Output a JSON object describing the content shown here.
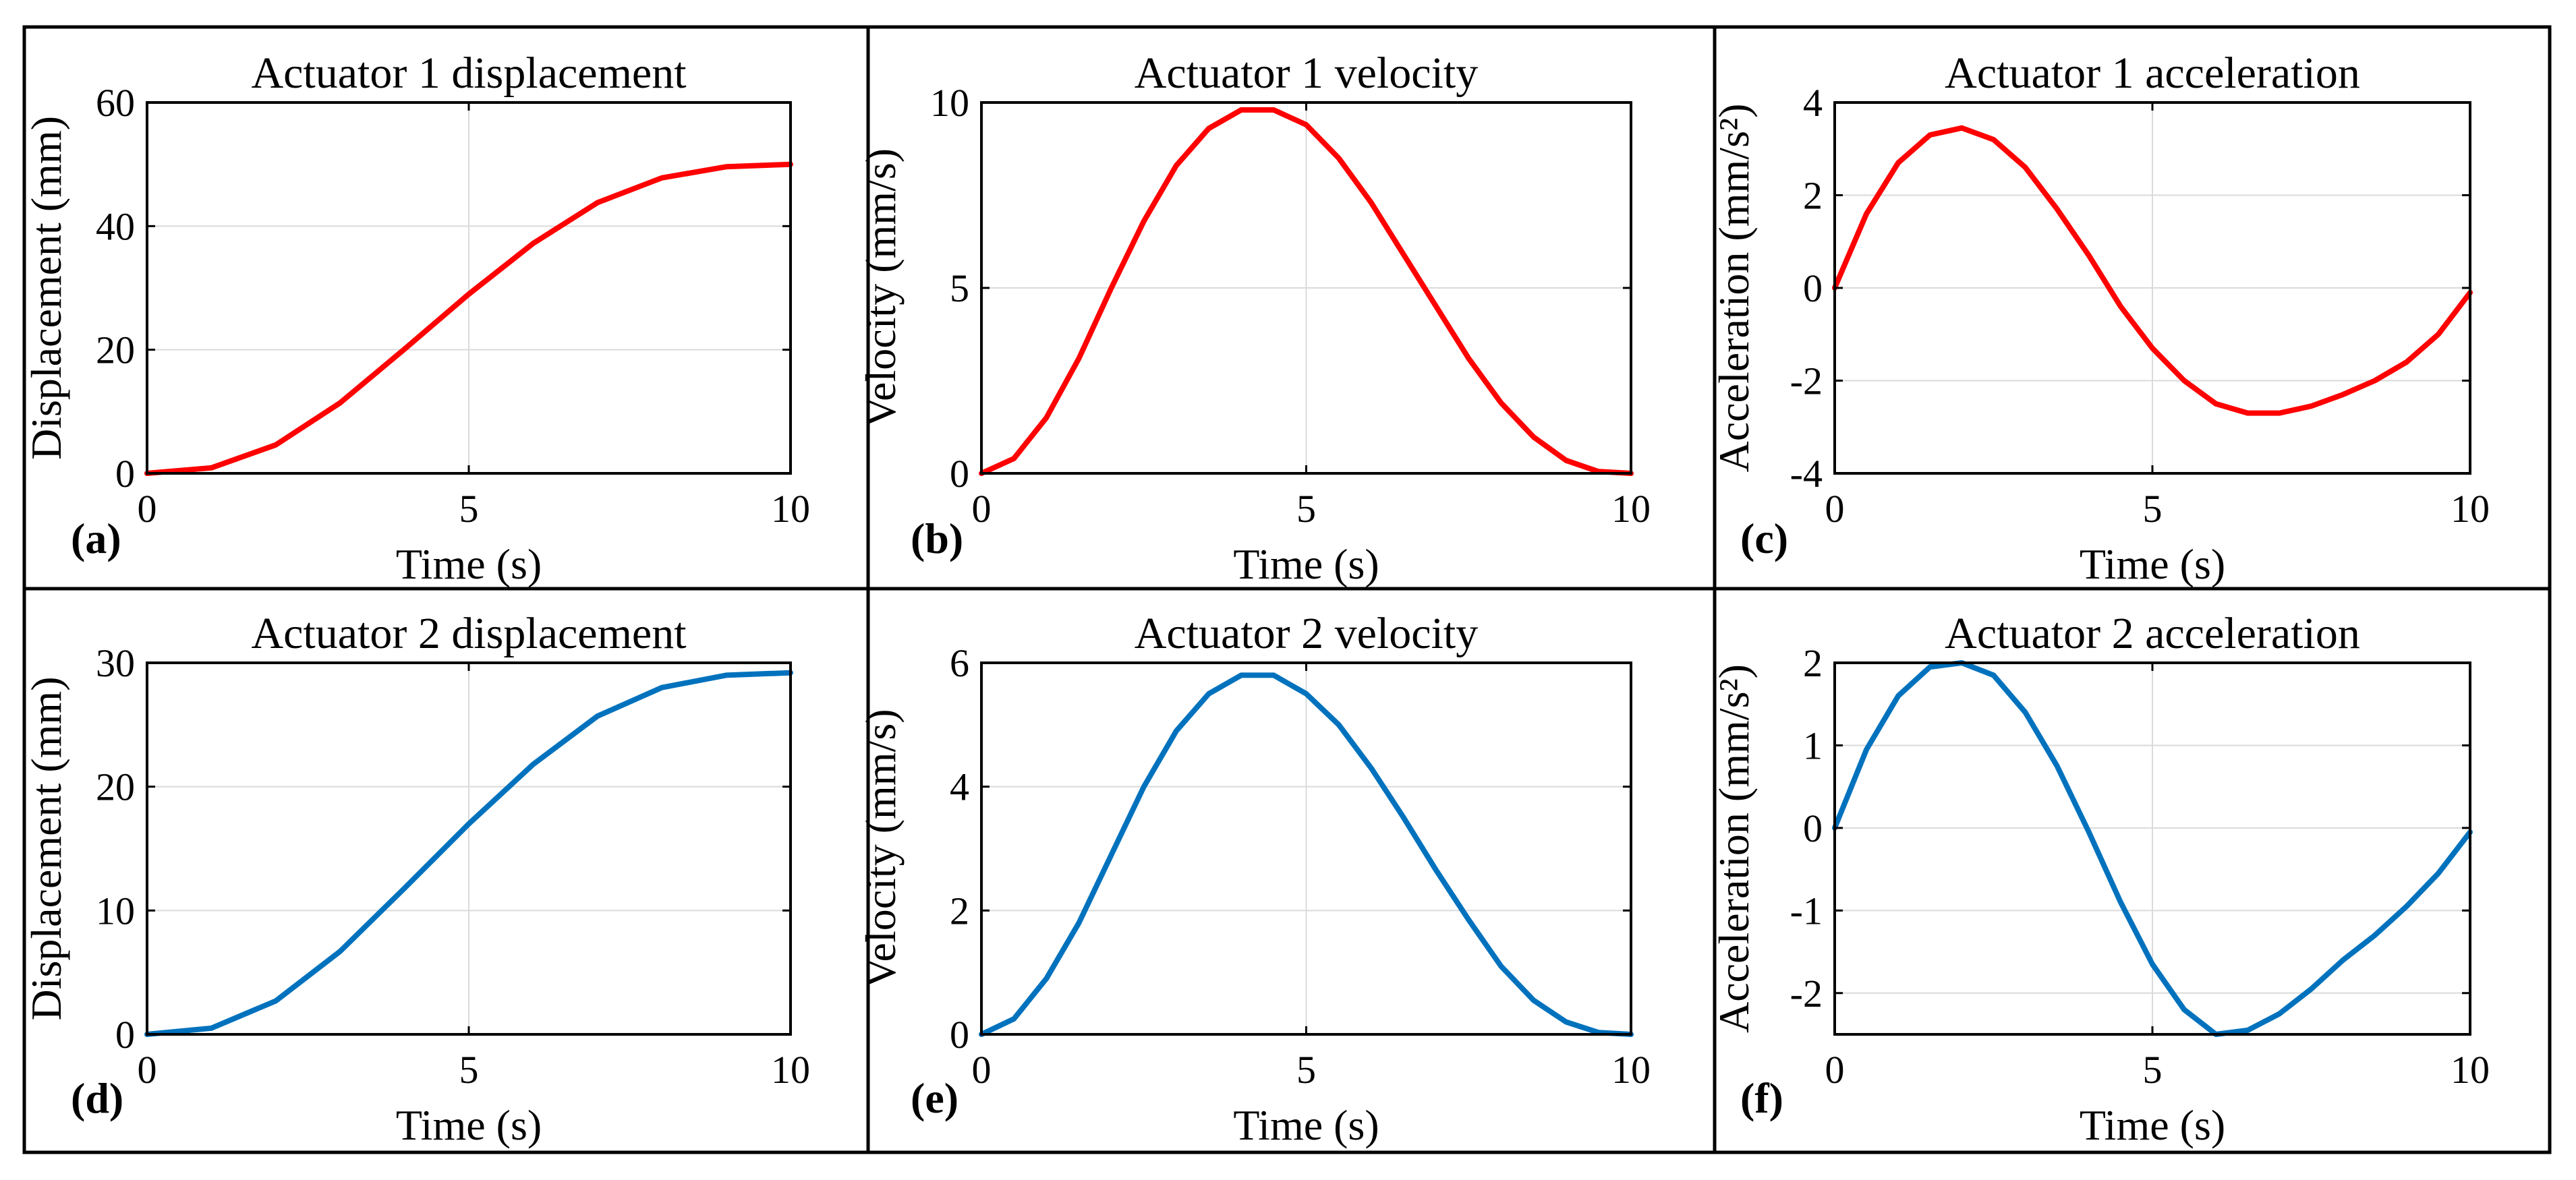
{
  "colors": {
    "red": "#ff0000",
    "blue": "#0072bd",
    "grid": "#dadada",
    "frame": "#000000"
  },
  "chart_data": [
    {
      "type": "line",
      "panel_label": "(a)",
      "title": "Actuator 1 displacement",
      "xlabel": "Time (s)",
      "ylabel": "Displacement (mm)",
      "xlim": [
        0,
        10
      ],
      "ylim": [
        0,
        60
      ],
      "xticks": [
        "0",
        "5",
        "10"
      ],
      "yticks": [
        "0",
        "20",
        "40",
        "60"
      ],
      "grid": true,
      "series": [
        {
          "color": "#ff0000",
          "x": [
            0,
            1,
            2,
            3,
            4,
            5,
            6,
            7,
            8,
            9,
            10
          ],
          "y": [
            0,
            0.9,
            4.6,
            11.4,
            20.1,
            29.0,
            37.2,
            43.8,
            47.8,
            49.6,
            50.0
          ]
        }
      ]
    },
    {
      "type": "line",
      "panel_label": "(b)",
      "title": "Actuator 1 velocity",
      "xlabel": "Time (s)",
      "ylabel": "Velocity (mm/s)",
      "xlim": [
        0,
        10
      ],
      "ylim": [
        0,
        10
      ],
      "xticks": [
        "0",
        "5",
        "10"
      ],
      "yticks": [
        "0",
        "5",
        "10"
      ],
      "grid": true,
      "series": [
        {
          "color": "#ff0000",
          "x": [
            0,
            0.5,
            1,
            1.5,
            2,
            2.5,
            3,
            3.5,
            4,
            4.5,
            5,
            5.5,
            6,
            6.5,
            7,
            7.5,
            8,
            8.5,
            9,
            9.5,
            10
          ],
          "y": [
            0,
            0.4,
            1.5,
            3.1,
            5.0,
            6.8,
            8.3,
            9.3,
            9.8,
            9.8,
            9.4,
            8.5,
            7.3,
            5.9,
            4.5,
            3.1,
            1.9,
            0.98,
            0.35,
            0.05,
            0
          ]
        }
      ]
    },
    {
      "type": "line",
      "panel_label": "(c)",
      "title": "Actuator 1 acceleration",
      "xlabel": "Time (s)",
      "ylabel": "Acceleration (mm/s²)",
      "xlim": [
        0,
        10
      ],
      "ylim": [
        -4,
        4
      ],
      "xticks": [
        "0",
        "5",
        "10"
      ],
      "yticks": [
        "-4",
        "-2",
        "0",
        "2",
        "4"
      ],
      "grid": true,
      "series": [
        {
          "color": "#ff0000",
          "x": [
            0,
            0.5,
            1,
            1.5,
            2,
            2.5,
            3,
            3.5,
            4,
            4.5,
            5,
            5.5,
            6,
            6.5,
            7,
            7.5,
            8,
            8.5,
            9,
            9.5,
            10
          ],
          "y": [
            0,
            1.6,
            2.7,
            3.3,
            3.45,
            3.2,
            2.6,
            1.7,
            0.7,
            -0.4,
            -1.3,
            -2.0,
            -2.5,
            -2.7,
            -2.7,
            -2.55,
            -2.3,
            -2.0,
            -1.6,
            -1.0,
            -0.1
          ]
        }
      ]
    },
    {
      "type": "line",
      "panel_label": "(d)",
      "title": "Actuator 2 displacement",
      "xlabel": "Time (s)",
      "ylabel": "Displacement (mm)",
      "xlim": [
        0,
        10
      ],
      "ylim": [
        0,
        30
      ],
      "xticks": [
        "0",
        "5",
        "10"
      ],
      "yticks": [
        "0",
        "10",
        "20",
        "30"
      ],
      "grid": true,
      "series": [
        {
          "color": "#0072bd",
          "x": [
            0,
            1,
            2,
            3,
            4,
            5,
            6,
            7,
            8,
            9,
            10
          ],
          "y": [
            0,
            0.5,
            2.7,
            6.7,
            11.8,
            17.0,
            21.8,
            25.7,
            28.0,
            29.0,
            29.2
          ]
        }
      ]
    },
    {
      "type": "line",
      "panel_label": "(e)",
      "title": "Actuator 2 velocity",
      "xlabel": "Time (s)",
      "ylabel": "Velocity (mm/s)",
      "xlim": [
        0,
        10
      ],
      "ylim": [
        0,
        6
      ],
      "xticks": [
        "0",
        "5",
        "10"
      ],
      "yticks": [
        "0",
        "2",
        "4",
        "6"
      ],
      "grid": true,
      "series": [
        {
          "color": "#0072bd",
          "x": [
            0,
            0.5,
            1,
            1.5,
            2,
            2.5,
            3,
            3.5,
            4,
            4.5,
            5,
            5.5,
            6,
            6.5,
            7,
            7.5,
            8,
            8.5,
            9,
            9.5,
            10
          ],
          "y": [
            0,
            0.25,
            0.9,
            1.8,
            2.9,
            4.0,
            4.9,
            5.5,
            5.8,
            5.8,
            5.5,
            5.0,
            4.3,
            3.5,
            2.65,
            1.85,
            1.1,
            0.55,
            0.2,
            0.03,
            0
          ]
        }
      ]
    },
    {
      "type": "line",
      "panel_label": "(f)",
      "title": "Actuator 2 acceleration",
      "xlabel": "Time (s)",
      "ylabel": "Acceleration (mm/s²)",
      "xlim": [
        0,
        10
      ],
      "ylim": [
        -2.5,
        2
      ],
      "xticks": [
        "0",
        "5",
        "10"
      ],
      "yticks": [
        "-2",
        "-1",
        "0",
        "1",
        "2"
      ],
      "grid": true,
      "series": [
        {
          "color": "#0072bd",
          "x": [
            0,
            0.5,
            1,
            1.5,
            2,
            2.5,
            3,
            3.5,
            4,
            4.5,
            5,
            5.5,
            6,
            6.5,
            7,
            7.5,
            8,
            8.5,
            9,
            9.5,
            10
          ],
          "y": [
            0,
            0.95,
            1.6,
            1.95,
            2.0,
            1.85,
            1.4,
            0.75,
            -0.05,
            -0.9,
            -1.65,
            -2.2,
            -2.5,
            -2.45,
            -2.25,
            -1.95,
            -1.6,
            -1.3,
            -0.95,
            -0.55,
            -0.05
          ]
        }
      ]
    }
  ]
}
